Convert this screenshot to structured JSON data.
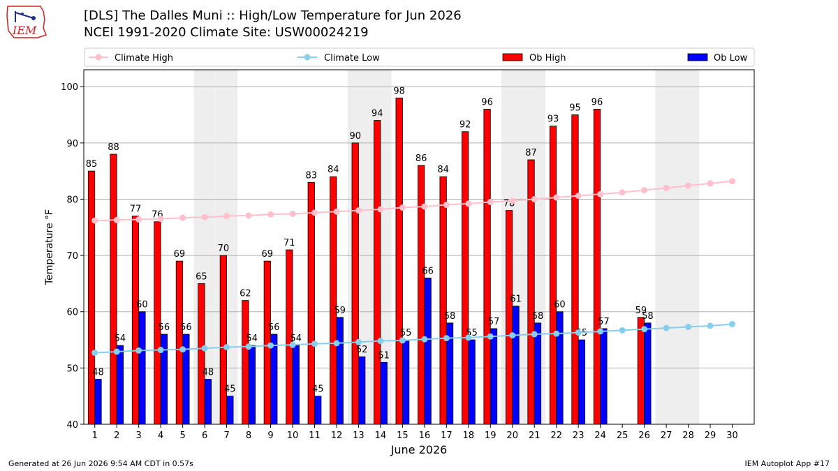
{
  "header": {
    "title_line1": "[DLS] The Dalles Muni :: High/Low Temperature for Jun 2026",
    "title_line2": "NCEI 1991-2020 Climate Site: USW00024219",
    "logo_text": "IEM"
  },
  "footer": {
    "left": "Generated at 26 Jun 2026 9:54 AM CDT in 0.57s",
    "right": "IEM Autoplot App #17"
  },
  "colors": {
    "ob_high": "#ff0000",
    "ob_low": "#0000ff",
    "climate_high": "#ffc0cb",
    "climate_low": "#87ceeb",
    "weekend_band": "#eeeeee",
    "grid": "#b0b0b0"
  },
  "chart_data": {
    "type": "bar",
    "xlabel": "June 2026",
    "ylabel": "Temperature °F",
    "ylim": [
      40,
      103
    ],
    "yticks": [
      40,
      50,
      60,
      70,
      80,
      90,
      100
    ],
    "grid": true,
    "legend_position": "top",
    "categories": [
      "1",
      "2",
      "3",
      "4",
      "5",
      "6",
      "7",
      "8",
      "9",
      "10",
      "11",
      "12",
      "13",
      "14",
      "15",
      "16",
      "17",
      "18",
      "19",
      "20",
      "21",
      "22",
      "23",
      "24",
      "25",
      "26",
      "27",
      "28",
      "29",
      "30"
    ],
    "weekend_days": [
      6,
      7,
      13,
      14,
      20,
      21,
      27,
      28
    ],
    "series": [
      {
        "name": "Ob High",
        "kind": "bar",
        "values": [
          85,
          88,
          77,
          76,
          69,
          65,
          70,
          62,
          69,
          71,
          83,
          84,
          90,
          94,
          98,
          86,
          84,
          92,
          96,
          78,
          87,
          93,
          95,
          96,
          null,
          59,
          null,
          null,
          null,
          null
        ]
      },
      {
        "name": "Ob Low",
        "kind": "bar",
        "values": [
          48,
          54,
          60,
          56,
          56,
          48,
          45,
          54,
          56,
          54,
          45,
          59,
          52,
          51,
          55,
          66,
          58,
          55,
          57,
          61,
          58,
          60,
          55,
          57,
          null,
          58,
          null,
          null,
          null,
          null
        ]
      },
      {
        "name": "Climate High",
        "kind": "line",
        "values": [
          76.2,
          76.3,
          76.4,
          76.5,
          76.7,
          76.8,
          77.0,
          77.1,
          77.3,
          77.4,
          77.6,
          77.8,
          78.0,
          78.2,
          78.5,
          78.7,
          79.0,
          79.2,
          79.5,
          79.7,
          80.0,
          80.3,
          80.6,
          80.9,
          81.2,
          81.6,
          82.0,
          82.4,
          82.8,
          83.2
        ]
      },
      {
        "name": "Climate Low",
        "kind": "line",
        "values": [
          52.7,
          52.9,
          53.1,
          53.2,
          53.3,
          53.5,
          53.7,
          53.8,
          54.0,
          54.1,
          54.3,
          54.4,
          54.6,
          54.8,
          54.9,
          55.1,
          55.3,
          55.4,
          55.6,
          55.8,
          56.0,
          56.1,
          56.3,
          56.5,
          56.7,
          56.9,
          57.1,
          57.3,
          57.5,
          57.8
        ]
      }
    ]
  }
}
